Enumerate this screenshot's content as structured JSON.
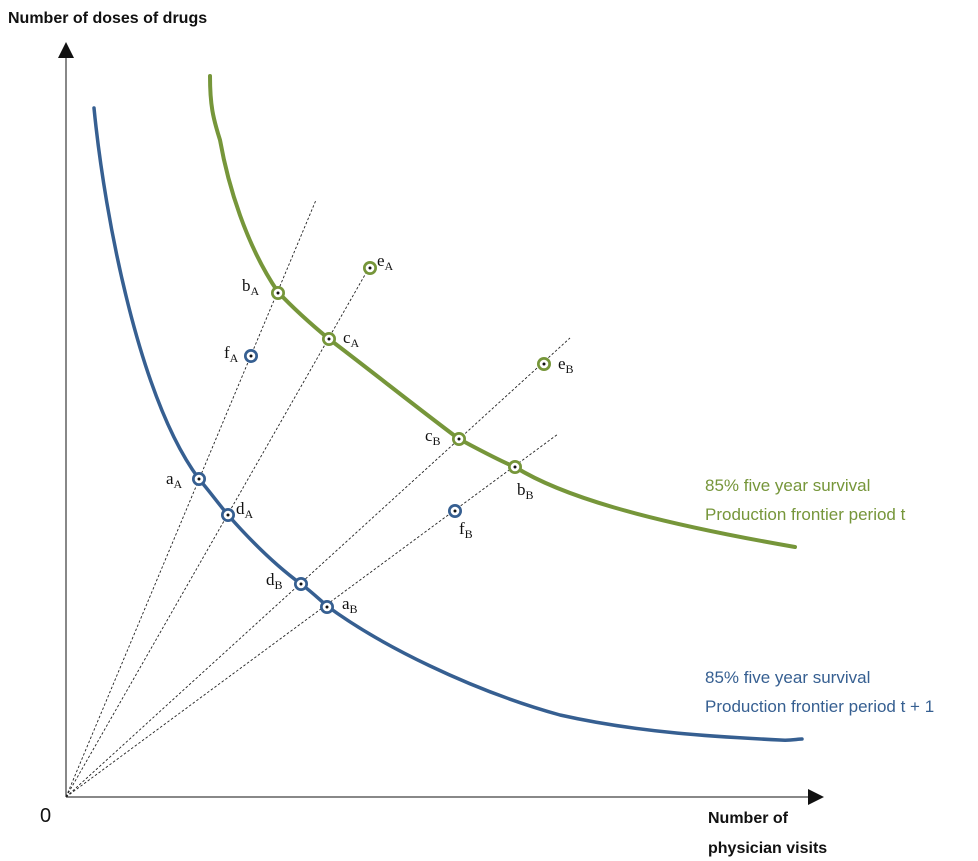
{
  "axes": {
    "y_label": "Number of doses of drugs",
    "x_label_line1": "Number of",
    "x_label_line2": "physician visits",
    "origin": "0"
  },
  "curves": {
    "period_t": {
      "line1": "85% five year survival",
      "line2": "Production frontier  period t",
      "color": "#76963a"
    },
    "period_t1": {
      "line1": "85% five year survival",
      "line2": "Production frontier period t + 1",
      "color": "#365f91"
    }
  },
  "points": [
    {
      "id": "bA",
      "letter": "b",
      "sub": "A",
      "frontier": "period_t"
    },
    {
      "id": "cA",
      "letter": "c",
      "sub": "A",
      "frontier": "period_t"
    },
    {
      "id": "eA",
      "letter": "e",
      "sub": "A",
      "frontier": "period_t"
    },
    {
      "id": "eB",
      "letter": "e",
      "sub": "B",
      "frontier": "period_t"
    },
    {
      "id": "cB",
      "letter": "c",
      "sub": "B",
      "frontier": "period_t"
    },
    {
      "id": "bB",
      "letter": "b",
      "sub": "B",
      "frontier": "period_t"
    },
    {
      "id": "fA",
      "letter": "f",
      "sub": "A",
      "frontier": "period_t1"
    },
    {
      "id": "aA",
      "letter": "a",
      "sub": "A",
      "frontier": "period_t1"
    },
    {
      "id": "dA",
      "letter": "d",
      "sub": "A",
      "frontier": "period_t1"
    },
    {
      "id": "dB",
      "letter": "d",
      "sub": "B",
      "frontier": "period_t1"
    },
    {
      "id": "aB",
      "letter": "a",
      "sub": "B",
      "frontier": "period_t1"
    },
    {
      "id": "fB",
      "letter": "f",
      "sub": "B",
      "frontier": "period_t1"
    }
  ]
}
